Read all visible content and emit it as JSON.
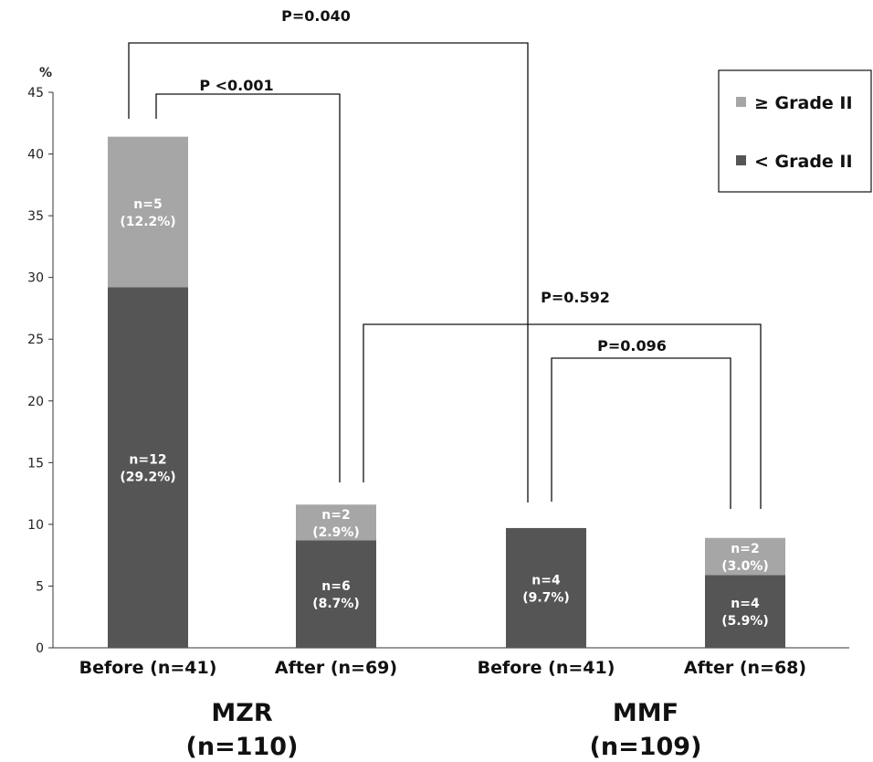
{
  "chart_data": {
    "type": "bar",
    "stacked": true,
    "ylabel": "%",
    "ylim": [
      0,
      45
    ],
    "yticks": [
      0,
      5,
      10,
      15,
      20,
      25,
      30,
      35,
      40,
      45
    ],
    "grid": false,
    "legend_position": "top-right",
    "categories": [
      "Before (n=41)",
      "After (n=69)",
      "Before (n=41)",
      "After (n=68)"
    ],
    "groups": [
      {
        "label": "MZR",
        "n_label": "(n=110)",
        "categories": [
          0,
          1
        ]
      },
      {
        "label": "MMF",
        "n_label": "(n=109)",
        "categories": [
          2,
          3
        ]
      }
    ],
    "series": [
      {
        "name": "< Grade II",
        "color": "#555555",
        "values": [
          29.2,
          8.7,
          9.7,
          5.9
        ],
        "labels": [
          [
            "n=12",
            "(29.2%)"
          ],
          [
            "n=6",
            "(8.7%)"
          ],
          [
            "n=4",
            "(9.7%)"
          ],
          [
            "n=4",
            "(5.9%)"
          ]
        ]
      },
      {
        "name": "≥ Grade II",
        "color": "#a6a6a6",
        "values": [
          12.2,
          2.9,
          0,
          3.0
        ],
        "labels": [
          [
            "n=5",
            "(12.2%)"
          ],
          [
            "n=2",
            "(2.9%)"
          ],
          null,
          [
            "n=2",
            "(3.0%)"
          ]
        ]
      }
    ],
    "comparisons": [
      {
        "from": 0,
        "to": 2,
        "label": "P=0.040"
      },
      {
        "from": 0,
        "to": 1,
        "label": "P <0.001"
      },
      {
        "from": 1,
        "to": 3,
        "label": "P=0.592"
      },
      {
        "from": 2,
        "to": 3,
        "label": "P=0.096"
      }
    ],
    "legend": [
      "≥ Grade II",
      "< Grade II"
    ]
  }
}
